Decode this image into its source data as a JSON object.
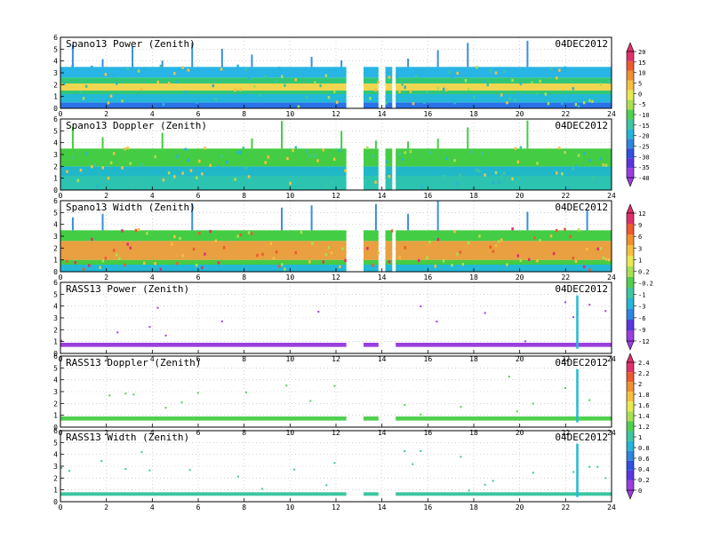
{
  "chart_data": [
    {
      "type": "heatmap",
      "title": "Spano13 Power (Zenith)",
      "date": "04DEC2012",
      "xlim": [
        0,
        24
      ],
      "ylim": [
        0,
        6
      ],
      "x_ticks": [
        "0",
        "2",
        "4",
        "6",
        "8",
        "10",
        "12",
        "14",
        "16",
        "18",
        "20",
        "22",
        "24"
      ],
      "y_ticks": [
        "0",
        "1",
        "2",
        "3",
        "4",
        "5",
        "6"
      ],
      "colorbar_group": 0,
      "data_segments": [
        [
          0.0,
          12.45
        ],
        [
          13.2,
          13.85
        ],
        [
          14.15,
          14.45
        ],
        [
          14.6,
          24.0
        ]
      ],
      "top_height_km": 3.5,
      "bands": [
        {
          "from": 0.0,
          "to": 0.5,
          "color": "#2a72e8"
        },
        {
          "from": 0.5,
          "to": 1.2,
          "color": "#22b8d6"
        },
        {
          "from": 1.2,
          "to": 1.5,
          "color": "#30c878"
        },
        {
          "from": 1.5,
          "to": 2.1,
          "color": "#f0d650"
        },
        {
          "from": 2.1,
          "to": 2.6,
          "color": "#30c878"
        },
        {
          "from": 2.6,
          "to": 3.5,
          "color": "#28b4e4"
        }
      ]
    },
    {
      "type": "heatmap",
      "title": "Spano13 Doppler (Zenith)",
      "date": "04DEC2012",
      "xlim": [
        0,
        24
      ],
      "ylim": [
        0,
        6
      ],
      "x_ticks": [
        "0",
        "2",
        "4",
        "6",
        "8",
        "10",
        "12",
        "14",
        "16",
        "18",
        "20",
        "22",
        "24"
      ],
      "y_ticks": [
        "0",
        "1",
        "2",
        "3",
        "4",
        "5",
        "6"
      ],
      "colorbar_group": 0,
      "data_segments": [
        [
          0.0,
          12.45
        ],
        [
          13.2,
          13.85
        ],
        [
          14.15,
          14.45
        ],
        [
          14.6,
          24.0
        ]
      ],
      "top_height_km": 3.5,
      "bands": [
        {
          "from": 0.0,
          "to": 1.2,
          "color": "#2cc4b0"
        },
        {
          "from": 1.2,
          "to": 2.0,
          "color": "#20b8c8"
        },
        {
          "from": 2.0,
          "to": 3.5,
          "color": "#44cc44"
        }
      ]
    },
    {
      "type": "heatmap",
      "title": "Spano13 Width (Zenith)",
      "date": "04DEC2012",
      "xlim": [
        0,
        24
      ],
      "ylim": [
        0,
        6
      ],
      "x_ticks": [
        "0",
        "2",
        "4",
        "6",
        "8",
        "10",
        "12",
        "14",
        "16",
        "18",
        "20",
        "22",
        "24"
      ],
      "y_ticks": [
        "0",
        "1",
        "2",
        "3",
        "4",
        "5",
        "6"
      ],
      "colorbar_group": 1,
      "data_segments": [
        [
          0.0,
          12.45
        ],
        [
          13.2,
          13.85
        ],
        [
          14.15,
          14.45
        ],
        [
          14.6,
          24.0
        ]
      ],
      "top_height_km": 3.5,
      "bands": [
        {
          "from": 0.0,
          "to": 0.6,
          "color": "#22b8d6"
        },
        {
          "from": 0.6,
          "to": 1.0,
          "color": "#44cc44"
        },
        {
          "from": 1.0,
          "to": 2.6,
          "color": "#e8a040"
        },
        {
          "from": 2.6,
          "to": 3.5,
          "color": "#44cc44"
        }
      ]
    },
    {
      "type": "heatmap",
      "title": "RASS13 Power (Zenith)",
      "date": "04DEC2012",
      "xlim": [
        0,
        24
      ],
      "ylim": [
        0,
        6
      ],
      "x_ticks": [
        "0",
        "2",
        "4",
        "6",
        "8",
        "10",
        "12",
        "14",
        "16",
        "18",
        "20",
        "22",
        "24"
      ],
      "y_ticks": [
        "0",
        "1",
        "2",
        "3",
        "4",
        "5",
        "6"
      ],
      "colorbar_group": 1,
      "data_segments": [
        [
          0.0,
          12.45
        ],
        [
          13.2,
          13.85
        ],
        [
          14.6,
          24.0
        ]
      ],
      "rass_band": {
        "from": 0.55,
        "to": 0.9,
        "color": "#9a3ee0"
      },
      "spike_x": 22.5,
      "spike_top_km": 4.9
    },
    {
      "type": "heatmap",
      "title": "RASS13 Doppler (Zenith)",
      "date": "04DEC2012",
      "xlim": [
        0,
        24
      ],
      "ylim": [
        0,
        6
      ],
      "x_ticks": [
        "0",
        "2",
        "4",
        "6",
        "8",
        "10",
        "12",
        "14",
        "16",
        "18",
        "20",
        "22",
        "24"
      ],
      "y_ticks": [
        "0",
        "1",
        "2",
        "3",
        "4",
        "5",
        "6"
      ],
      "colorbar_group": 2,
      "data_segments": [
        [
          0.0,
          12.45
        ],
        [
          13.2,
          13.85
        ],
        [
          14.6,
          24.0
        ]
      ],
      "rass_band": {
        "from": 0.55,
        "to": 0.9,
        "color": "#50d050"
      },
      "spike_x": 22.5,
      "spike_top_km": 4.9
    },
    {
      "type": "heatmap",
      "title": "RASS13 Width (Zenith)",
      "date": "04DEC2012",
      "xlim": [
        0,
        24
      ],
      "ylim": [
        0,
        6
      ],
      "x_ticks": [
        "0",
        "2",
        "4",
        "6",
        "8",
        "10",
        "12",
        "14",
        "16",
        "18",
        "20",
        "22",
        "24"
      ],
      "y_ticks": [
        "0",
        "1",
        "2",
        "3",
        "4",
        "5",
        "6"
      ],
      "colorbar_group": 2,
      "data_segments": [
        [
          0.0,
          12.45
        ],
        [
          13.2,
          13.85
        ],
        [
          14.6,
          24.0
        ]
      ],
      "rass_band": {
        "from": 0.5,
        "to": 0.8,
        "color": "#3cc6a0"
      },
      "spike_x": 22.5,
      "spike_top_km": 4.9
    }
  ],
  "colorbars": [
    {
      "labels": [
        "20",
        "15",
        "10",
        "5",
        "0",
        "-5",
        "-10",
        "-15",
        "-20",
        "-25",
        "-30",
        "-35",
        "-40"
      ],
      "colors": [
        "#e0306c",
        "#ee5a30",
        "#f09030",
        "#f5c040",
        "#e8e850",
        "#a8e050",
        "#50d050",
        "#3cc6a0",
        "#26b4d8",
        "#2e86e0",
        "#3050e0",
        "#5a36e0",
        "#9a3ee0"
      ]
    },
    {
      "labels": [
        "12",
        "9",
        "6",
        "3",
        "1",
        "0.2",
        "-0.2",
        "-1",
        "-3",
        "-6",
        "-9",
        "-12"
      ],
      "colors": [
        "#e0306c",
        "#ee5a30",
        "#f09030",
        "#f5c040",
        "#e8e850",
        "#a8e050",
        "#50d050",
        "#3cc6a0",
        "#26b4d8",
        "#2e86e0",
        "#5a36e0",
        "#9a3ee0"
      ]
    },
    {
      "labels": [
        "2.4",
        "2.2",
        "2",
        "1.8",
        "1.6",
        "1.4",
        "1.2",
        "1",
        "0.8",
        "0.6",
        "0.4",
        "0.2",
        "0"
      ],
      "colors": [
        "#e0306c",
        "#ee5a30",
        "#f09030",
        "#f5c040",
        "#e8e850",
        "#a8e050",
        "#50d050",
        "#3cc6a0",
        "#26b4d8",
        "#2e86e0",
        "#3050e0",
        "#5a36e0",
        "#9a3ee0"
      ]
    }
  ]
}
